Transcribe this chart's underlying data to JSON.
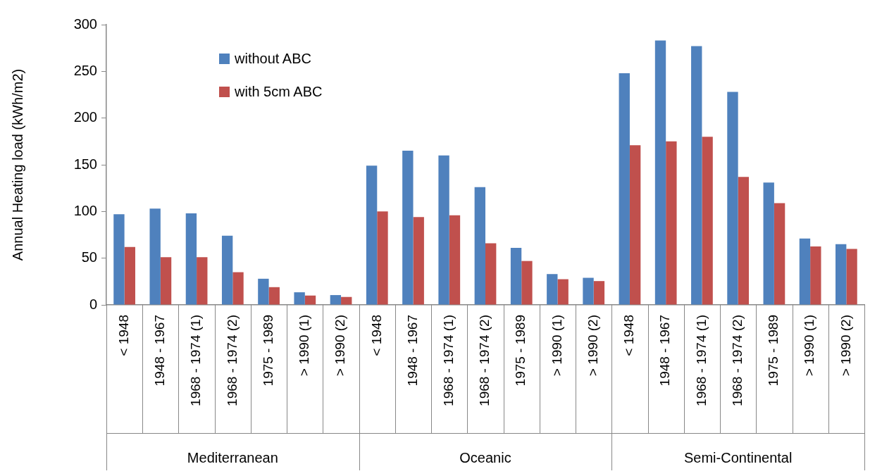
{
  "chart_data": {
    "type": "bar",
    "ylabel": "Annual Heating load (kWh/m2)",
    "categories": [
      "< 1948",
      "1948 - 1967",
      "1968 - 1974 (1)",
      "1968 - 1974 (2)",
      "1975 - 1989",
      "> 1990 (1)",
      "> 1990 (2)",
      "< 1948",
      "1948 - 1967",
      "1968 - 1974 (1)",
      "1968 - 1974 (2)",
      "1975 - 1989",
      "> 1990 (1)",
      "> 1990 (2)",
      "< 1948",
      "1948 - 1967",
      "1968 - 1974 (1)",
      "1968 - 1974 (2)",
      "1975 - 1989",
      "> 1990 (1)",
      "> 1990 (2)"
    ],
    "series": [
      {
        "name": "without ABC",
        "color": "#4f81bd",
        "values": [
          97,
          103,
          98,
          74,
          28,
          13.5,
          10.5,
          149,
          165,
          160,
          126,
          61,
          33,
          29,
          248,
          283,
          277,
          228,
          131,
          71,
          65
        ]
      },
      {
        "name": "with 5cm ABC",
        "color": "#c0504d",
        "values": [
          62,
          51,
          51,
          35,
          19,
          10,
          8.5,
          100,
          94,
          96,
          66,
          47,
          27.5,
          25.5,
          171,
          175,
          180,
          137,
          109,
          62.5,
          60
        ]
      }
    ],
    "ylim": [
      0,
      300
    ],
    "yticks": [
      0,
      50,
      100,
      150,
      200,
      250,
      300
    ],
    "grid": false,
    "legend": "top left",
    "annotations": [
      "Mediterranean",
      "Oceanic",
      "Semi-Continental"
    ]
  }
}
